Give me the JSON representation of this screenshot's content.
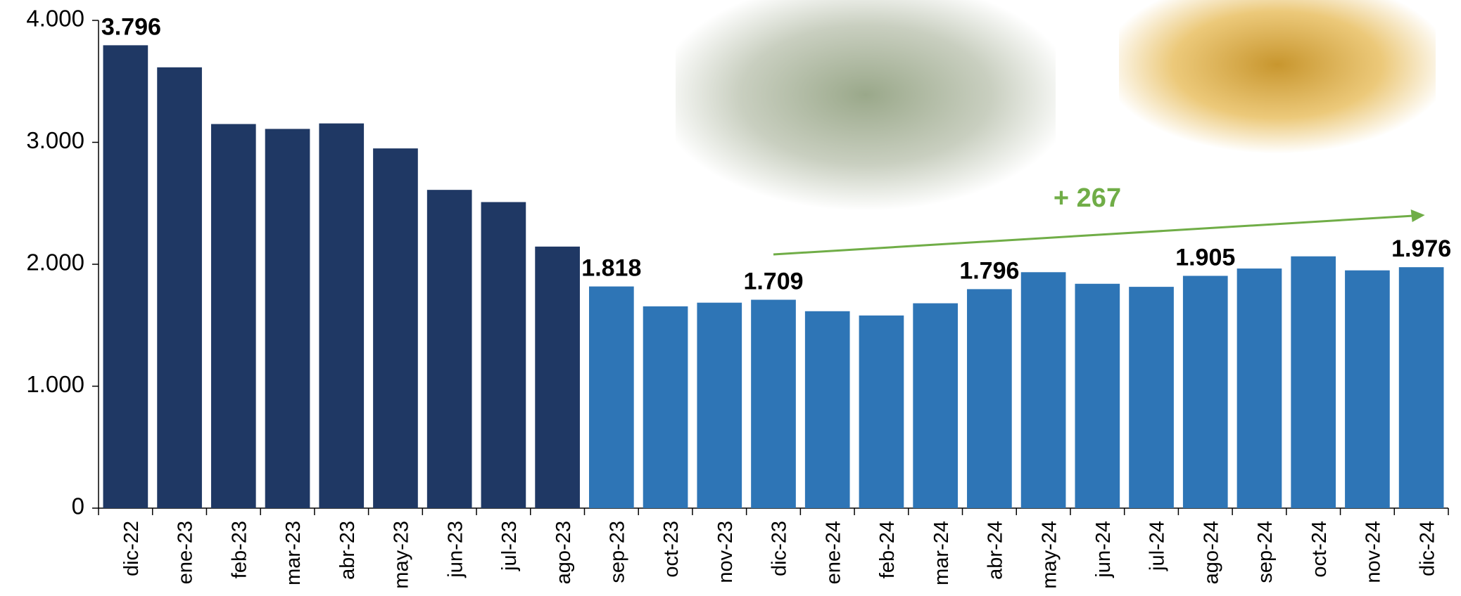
{
  "chart_data": {
    "type": "bar",
    "categories": [
      "dic-22",
      "ene-23",
      "feb-23",
      "mar-23",
      "abr-23",
      "may-23",
      "jun-23",
      "jul-23",
      "ago-23",
      "sep-23",
      "oct-23",
      "nov-23",
      "dic-23",
      "ene-24",
      "feb-24",
      "mar-24",
      "abr-24",
      "may-24",
      "jun-24",
      "jul-24",
      "ago-24",
      "sep-24",
      "oct-24",
      "nov-24",
      "dic-24"
    ],
    "values": [
      3796,
      3615,
      3150,
      3110,
      3155,
      2950,
      2610,
      2510,
      2145,
      1818,
      1655,
      1685,
      1709,
      1615,
      1580,
      1680,
      1796,
      1935,
      1840,
      1815,
      1905,
      1965,
      2065,
      1950,
      1976
    ],
    "value_labels": [
      "3.796",
      null,
      null,
      null,
      null,
      null,
      null,
      null,
      null,
      "1.818",
      null,
      null,
      "1.709",
      null,
      null,
      null,
      "1.796",
      null,
      null,
      null,
      "1.905",
      null,
      null,
      null,
      "1.976"
    ],
    "colors": [
      "#1f3864",
      "#1f3864",
      "#1f3864",
      "#1f3864",
      "#1f3864",
      "#1f3864",
      "#1f3864",
      "#1f3864",
      "#1f3864",
      "#2e75b6",
      "#2e75b6",
      "#2e75b6",
      "#2e75b6",
      "#2e75b6",
      "#2e75b6",
      "#2e75b6",
      "#2e75b6",
      "#2e75b6",
      "#2e75b6",
      "#2e75b6",
      "#2e75b6",
      "#2e75b6",
      "#2e75b6",
      "#2e75b6",
      "#2e75b6"
    ],
    "ylim": [
      0,
      4000
    ],
    "yticks": [
      0,
      {
        "value": 1000,
        "label": "1.000"
      },
      {
        "value": 2000,
        "label": "2.000"
      },
      {
        "value": 3000,
        "label": "3.000"
      },
      {
        "value": 4000,
        "label": "4.000"
      }
    ],
    "annotation": "+ 267",
    "annotation_color": "#70ad47"
  }
}
